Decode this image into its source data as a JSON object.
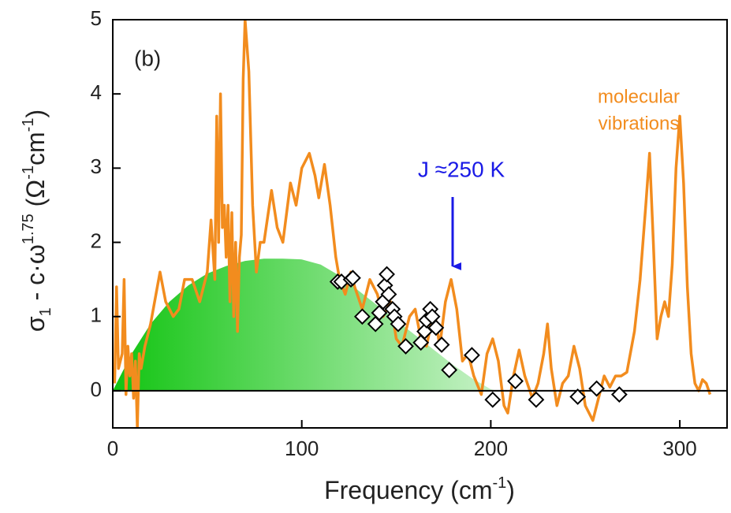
{
  "chart_data": {
    "type": "line",
    "panel_label": "(b)",
    "annotations": [
      "molecular",
      "vibrations",
      "J ≈250 K"
    ],
    "xlabel": [
      {
        "text": "Frequency (cm"
      },
      {
        "text": "-1",
        "script": "super"
      },
      {
        "text": ")"
      }
    ],
    "ylabel": [
      {
        "text": "σ"
      },
      {
        "text": "1",
        "script": "sub"
      },
      {
        "text": " - c·ω"
      },
      {
        "text": "1.75",
        "script": "super"
      },
      {
        "text": " (Ω"
      },
      {
        "text": "-1",
        "script": "super"
      },
      {
        "text": "cm"
      },
      {
        "text": "-1",
        "script": "super"
      },
      {
        "text": ")"
      }
    ],
    "xlim": [
      0,
      325
    ],
    "ylim": [
      -0.5,
      5
    ],
    "xticks": [
      0,
      100,
      200,
      300
    ],
    "yticks": [
      0,
      1,
      2,
      3,
      4,
      5
    ],
    "series": [
      {
        "type": "area",
        "color": "#22cc22",
        "x": [
          0,
          10,
          20,
          30,
          40,
          50,
          60,
          70,
          80,
          90,
          100,
          110,
          120,
          130,
          140,
          150,
          160,
          170,
          180,
          190,
          200,
          203
        ],
        "values": [
          0,
          0.5,
          0.9,
          1.2,
          1.42,
          1.58,
          1.68,
          1.75,
          1.78,
          1.78,
          1.77,
          1.7,
          1.55,
          1.35,
          1.15,
          0.95,
          0.75,
          0.55,
          0.35,
          0.17,
          0.02,
          0
        ]
      },
      {
        "type": "line",
        "color": "#f28c1e",
        "x": [
          1,
          2,
          3,
          5,
          6,
          7,
          8,
          9,
          10,
          11,
          12,
          13,
          14,
          15,
          17,
          20,
          25,
          28,
          32,
          35,
          38,
          42,
          46,
          50,
          52,
          54,
          55,
          56,
          57,
          58,
          59,
          60,
          61,
          62,
          63,
          64,
          65,
          66,
          67,
          68,
          69,
          70,
          72,
          74,
          76,
          78,
          80,
          84,
          87,
          90,
          94,
          97,
          100,
          104,
          107,
          109,
          112,
          115,
          118,
          120,
          123,
          126,
          128,
          132,
          136,
          140,
          143,
          147,
          150,
          153,
          157,
          160,
          163,
          166,
          170,
          173,
          176,
          179,
          182,
          185,
          188,
          191,
          195,
          198,
          201,
          204,
          207,
          209,
          212,
          215,
          218,
          222,
          225,
          228,
          230,
          232,
          235,
          238,
          241,
          244,
          247,
          250,
          254,
          257,
          260,
          263,
          266,
          269,
          272,
          276,
          279,
          282,
          284,
          286,
          288,
          290,
          292,
          294,
          296,
          298,
          300,
          302,
          304,
          306,
          308,
          310,
          312,
          314,
          316
        ],
        "values": [
          0.1,
          1.4,
          0.3,
          0.5,
          1.5,
          -0.05,
          0.6,
          0.2,
          0.5,
          -0.1,
          0.4,
          -0.5,
          0.5,
          0.3,
          0.6,
          0.9,
          1.6,
          1.2,
          1.0,
          1.1,
          1.5,
          1.5,
          1.2,
          1.6,
          2.3,
          1.5,
          3.7,
          2.0,
          4.0,
          2.2,
          2.5,
          1.8,
          2.5,
          1.2,
          2.4,
          1.0,
          2.0,
          0.8,
          1.8,
          2.1,
          4.2,
          5.0,
          4.3,
          2.5,
          1.6,
          2.0,
          2.0,
          2.7,
          2.2,
          2.0,
          2.8,
          2.5,
          3.0,
          3.2,
          2.9,
          2.6,
          3.05,
          2.5,
          1.8,
          1.5,
          1.3,
          1.6,
          1.4,
          1.1,
          1.5,
          1.3,
          1.0,
          1.2,
          0.7,
          0.6,
          1.0,
          1.1,
          0.7,
          0.6,
          1.1,
          0.6,
          1.2,
          1.5,
          1.1,
          0.4,
          0.5,
          0.2,
          -0.05,
          0.5,
          0.7,
          0.4,
          -0.2,
          -0.3,
          0.2,
          0.55,
          0.2,
          -0.1,
          0.1,
          0.5,
          0.9,
          0.3,
          -0.2,
          0.1,
          0.2,
          0.6,
          0.3,
          -0.2,
          -0.4,
          -0.1,
          0.2,
          0.05,
          0.2,
          0.2,
          0.25,
          0.8,
          1.5,
          2.5,
          3.2,
          2.0,
          0.7,
          1.0,
          1.2,
          1.0,
          1.7,
          3.0,
          3.7,
          2.8,
          1.4,
          0.5,
          0.1,
          0.0,
          0.15,
          0.1,
          -0.05
        ]
      },
      {
        "type": "scatter",
        "color": "#ffffff",
        "x": [
          119,
          121,
          126,
          127,
          132,
          139,
          141,
          143,
          144,
          145,
          146,
          148,
          149,
          151,
          155,
          163,
          165,
          166,
          168,
          169,
          171,
          174,
          178,
          190,
          201,
          213,
          224,
          246,
          256,
          268
        ],
        "values": [
          1.47,
          1.47,
          1.5,
          1.52,
          1.0,
          0.9,
          1.05,
          1.2,
          1.42,
          1.57,
          1.3,
          1.1,
          1.0,
          0.9,
          0.6,
          0.65,
          0.8,
          0.95,
          1.1,
          1.0,
          0.85,
          0.62,
          0.28,
          0.48,
          -0.12,
          0.13,
          -0.12,
          -0.08,
          0.03,
          -0.05
        ]
      }
    ]
  }
}
